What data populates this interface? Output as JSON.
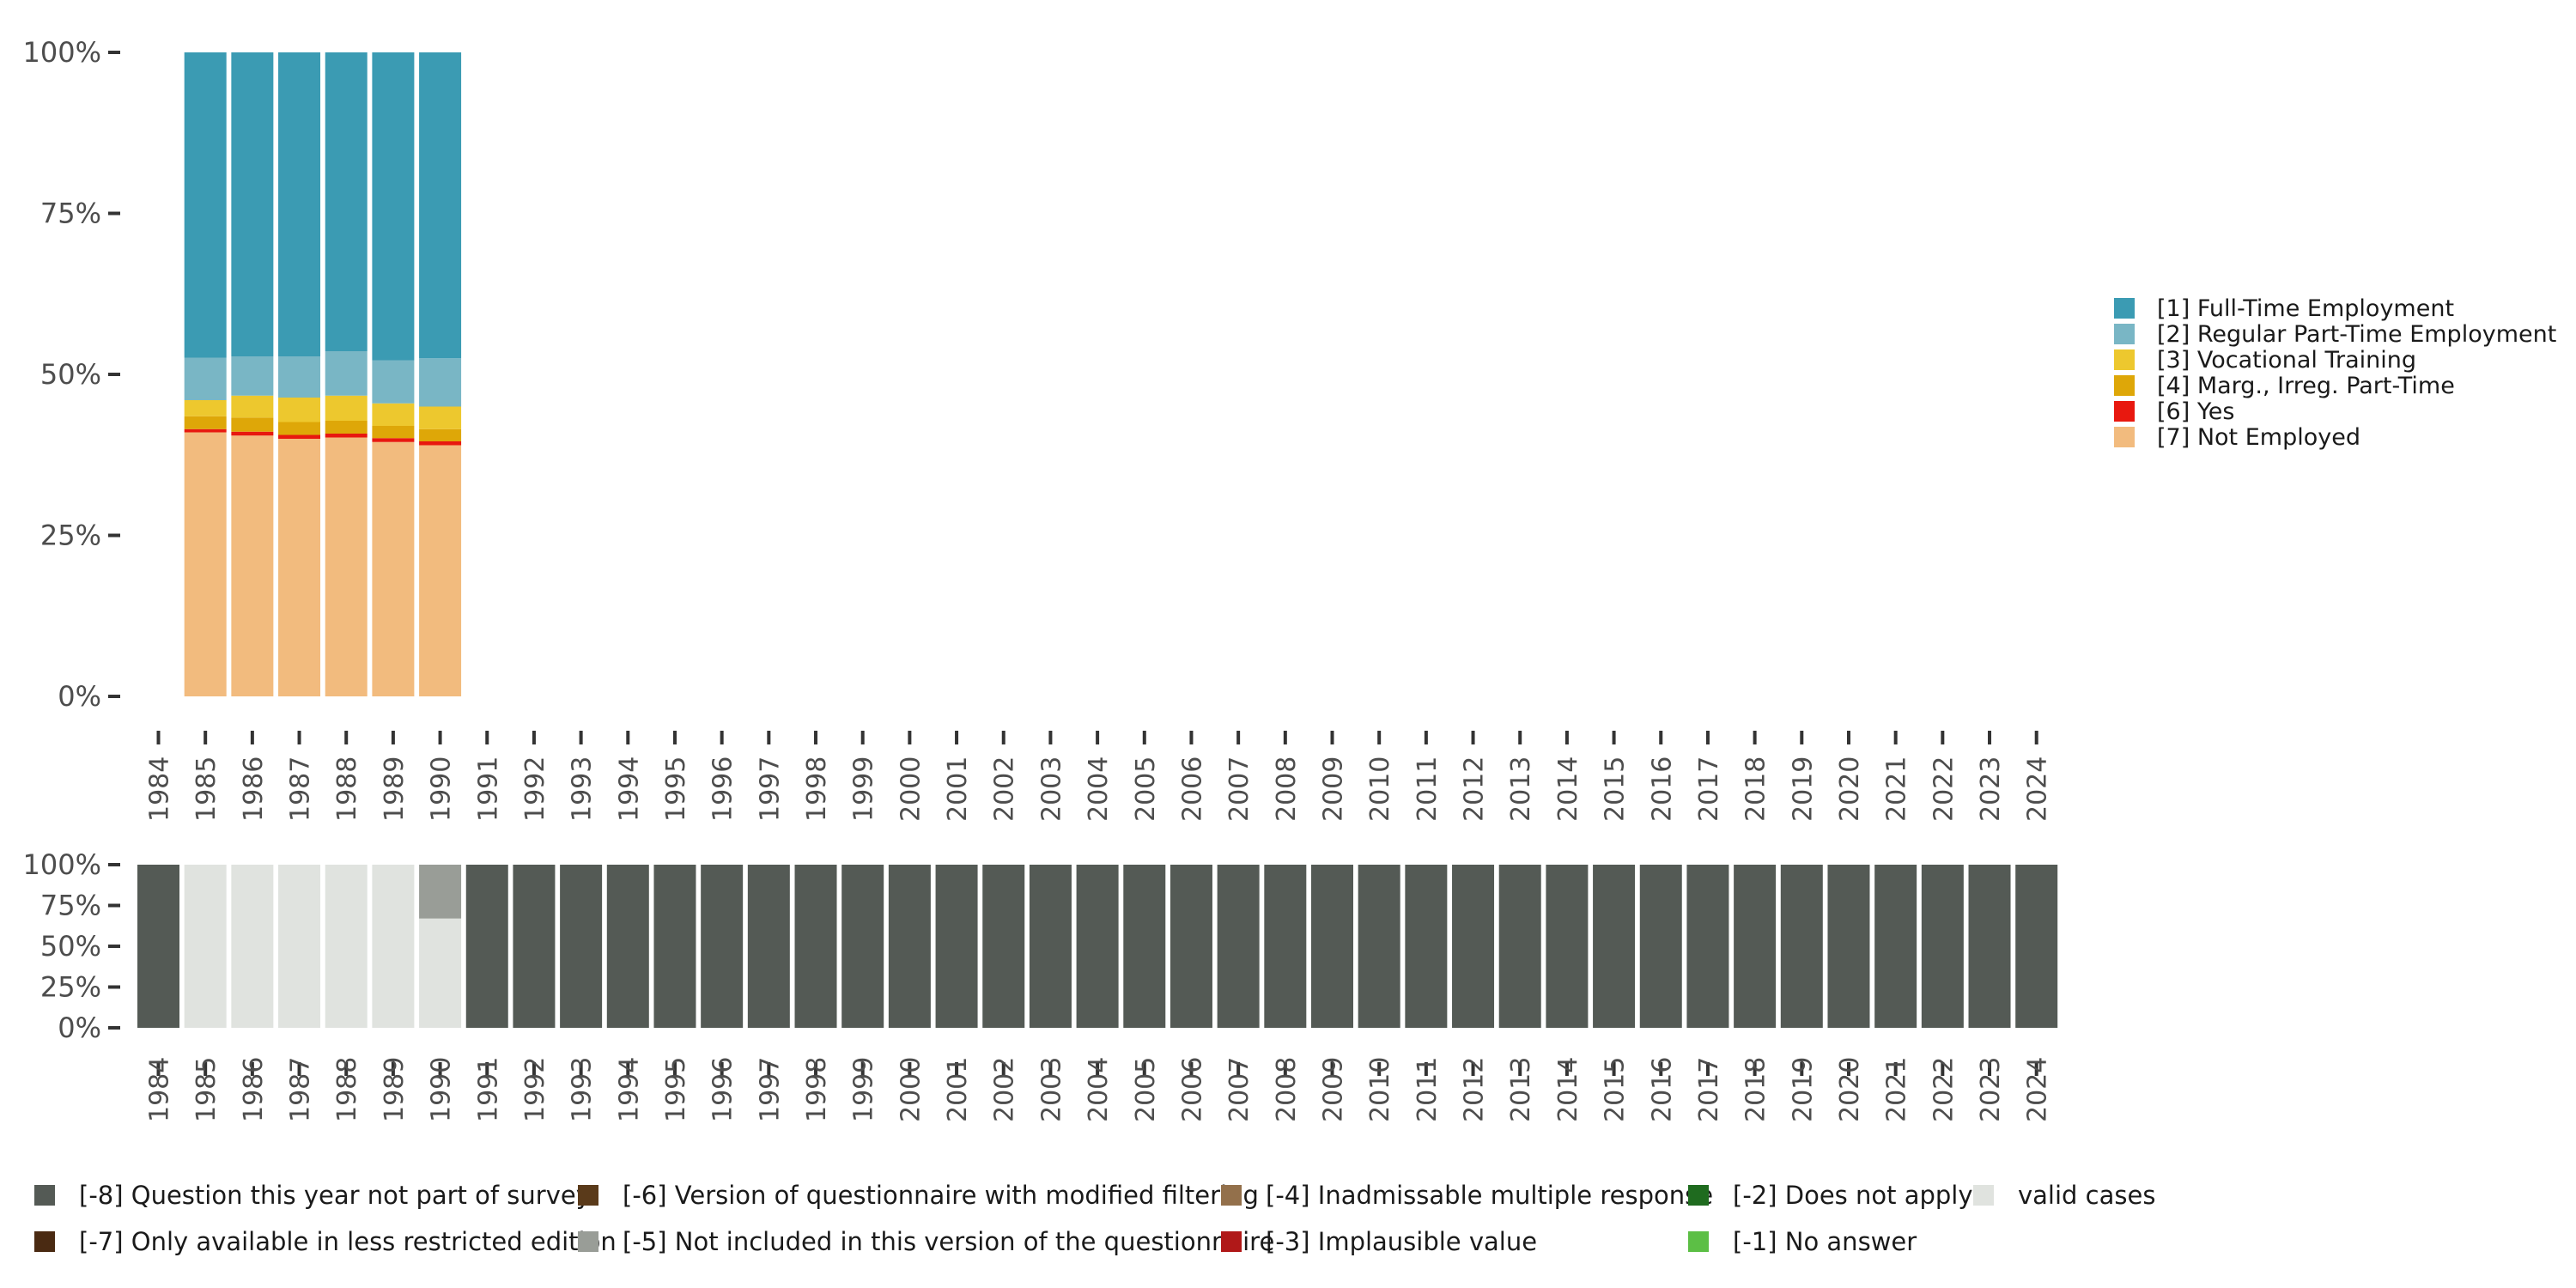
{
  "chart_data": [
    {
      "type": "bar",
      "stacked": true,
      "name": "value distribution",
      "categories": [
        "1984",
        "1985",
        "1986",
        "1987",
        "1988",
        "1989",
        "1990",
        "1991",
        "1992",
        "1993",
        "1994",
        "1995",
        "1996",
        "1997",
        "1998",
        "1999",
        "2000",
        "2001",
        "2002",
        "2003",
        "2004",
        "2005",
        "2006",
        "2007",
        "2008",
        "2009",
        "2010",
        "2011",
        "2012",
        "2013",
        "2014",
        "2015",
        "2016",
        "2017",
        "2018",
        "2019",
        "2020",
        "2021",
        "2022",
        "2023",
        "2024"
      ],
      "yticks": [
        "0%",
        "25%",
        "50%",
        "75%",
        "100%"
      ],
      "ylim": [
        0,
        100
      ],
      "legend_position": "right",
      "series": [
        {
          "name": "[7] Not Employed",
          "color": "#f2bb7e",
          "values": {
            "1985": 41.0,
            "1986": 40.5,
            "1987": 40.0,
            "1988": 40.2,
            "1989": 39.5,
            "1990": 39.0
          }
        },
        {
          "name": "[6] Yes",
          "color": "#e8180f",
          "values": {
            "1985": 0.5,
            "1986": 0.6,
            "1987": 0.6,
            "1988": 0.6,
            "1989": 0.6,
            "1990": 0.6
          }
        },
        {
          "name": "[4] Marg., Irreg. Part-Time",
          "color": "#dea708",
          "values": {
            "1985": 2.0,
            "1986": 2.2,
            "1987": 2.0,
            "1988": 2.0,
            "1989": 1.9,
            "1990": 1.9
          }
        },
        {
          "name": "[3] Vocational Training",
          "color": "#edc82e",
          "values": {
            "1985": 2.5,
            "1986": 3.4,
            "1987": 3.8,
            "1988": 3.9,
            "1989": 3.5,
            "1990": 3.5
          }
        },
        {
          "name": "[2] Regular Part-Time Employment",
          "color": "#79b6c5",
          "values": {
            "1985": 6.6,
            "1986": 6.1,
            "1987": 6.4,
            "1988": 6.9,
            "1989": 6.7,
            "1990": 7.5
          }
        },
        {
          "name": "[1] Full-Time Employment",
          "color": "#3b9bb3",
          "values": {
            "1985": 47.4,
            "1986": 47.2,
            "1987": 47.2,
            "1988": 46.4,
            "1989": 47.8,
            "1990": 47.5
          }
        }
      ],
      "legend": [
        {
          "label": "[1] Full-Time Employment",
          "color": "#3b9bb3"
        },
        {
          "label": "[2] Regular Part-Time Employment",
          "color": "#79b6c5"
        },
        {
          "label": "[3] Vocational Training",
          "color": "#edc82e"
        },
        {
          "label": "[4] Marg., Irreg. Part-Time",
          "color": "#dea708"
        },
        {
          "label": "[6] Yes",
          "color": "#e8180f"
        },
        {
          "label": "[7] Not Employed",
          "color": "#f2bb7e"
        }
      ]
    },
    {
      "type": "bar",
      "stacked": true,
      "name": "missing value distribution",
      "categories": [
        "1984",
        "1985",
        "1986",
        "1987",
        "1988",
        "1989",
        "1990",
        "1991",
        "1992",
        "1993",
        "1994",
        "1995",
        "1996",
        "1997",
        "1998",
        "1999",
        "2000",
        "2001",
        "2002",
        "2003",
        "2004",
        "2005",
        "2006",
        "2007",
        "2008",
        "2009",
        "2010",
        "2011",
        "2012",
        "2013",
        "2014",
        "2015",
        "2016",
        "2017",
        "2018",
        "2019",
        "2020",
        "2021",
        "2022",
        "2023",
        "2024"
      ],
      "yticks": [
        "0%",
        "25%",
        "50%",
        "75%",
        "100%"
      ],
      "ylim": [
        0,
        100
      ],
      "series": [
        {
          "name": "valid cases",
          "color": "#e0e3df",
          "values": {
            "1985": 100,
            "1986": 100,
            "1987": 100,
            "1988": 100,
            "1989": 100,
            "1990": 67
          }
        },
        {
          "name": "[-5] Not included in this version of the questionnaire",
          "color": "#999d97",
          "values": {
            "1990": 33
          }
        },
        {
          "name": "[-8] Question this year not part of survey",
          "color": "#545a55",
          "values": {
            "1984": 100,
            "1991": 100,
            "1992": 100,
            "1993": 100,
            "1994": 100,
            "1995": 100,
            "1996": 100,
            "1997": 100,
            "1998": 100,
            "1999": 100,
            "2000": 100,
            "2001": 100,
            "2002": 100,
            "2003": 100,
            "2004": 100,
            "2005": 100,
            "2006": 100,
            "2007": 100,
            "2008": 100,
            "2009": 100,
            "2010": 100,
            "2011": 100,
            "2012": 100,
            "2013": 100,
            "2014": 100,
            "2015": 100,
            "2016": 100,
            "2017": 100,
            "2018": 100,
            "2019": 100,
            "2020": 100,
            "2021": 100,
            "2022": 100,
            "2023": 100,
            "2024": 100
          }
        }
      ],
      "legend_position": "bottom",
      "legend": [
        {
          "label": "[-8] Question this year not part of survey",
          "color": "#545a55"
        },
        {
          "label": "[-6] Version of questionnaire with modified filtering",
          "color": "#5a3a1a"
        },
        {
          "label": "[-4] Inadmissable multiple response",
          "color": "#93704b"
        },
        {
          "label": "[-2] Does not apply",
          "color": "#1f6b1f"
        },
        {
          "label": "valid cases",
          "color": "#e0e3df"
        },
        {
          "label": "[-7] Only available in less restricted edition",
          "color": "#4a2a12"
        },
        {
          "label": "[-5] Not included in this version of the questionnaire",
          "color": "#999d97"
        },
        {
          "label": "[-3] Implausible value",
          "color": "#b01818"
        },
        {
          "label": "[-1] No answer",
          "color": "#5cbf45"
        }
      ]
    }
  ]
}
